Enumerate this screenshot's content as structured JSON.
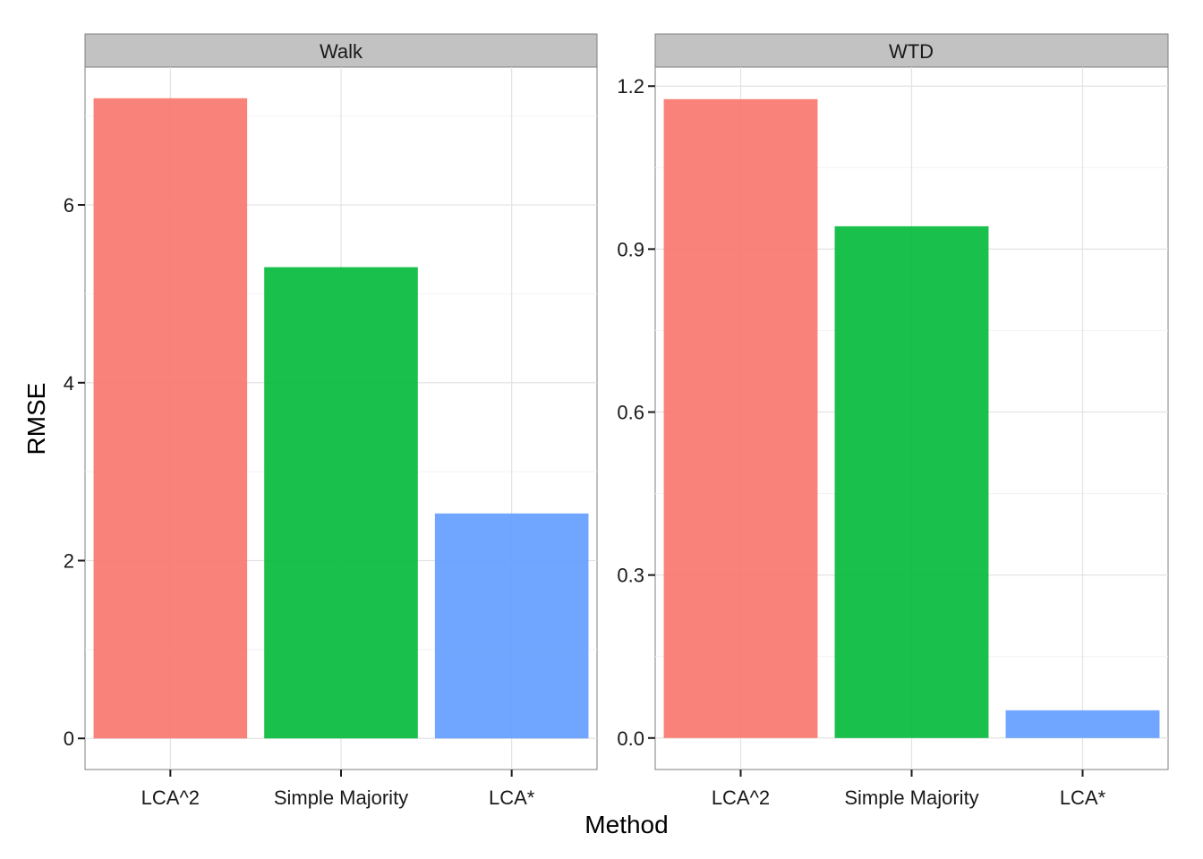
{
  "chart_data": {
    "type": "bar",
    "xlabel": "Method",
    "ylabel": "RMSE",
    "categories": [
      "LCA^2",
      "Simple Majority",
      "LCA*"
    ],
    "colors": [
      "#F8766D",
      "#00BA38",
      "#619CFF"
    ],
    "grid": true,
    "legend": "none",
    "panels": [
      {
        "title": "Walk",
        "values": [
          7.2,
          5.3,
          2.53
        ],
        "ylim": [
          -0.35,
          7.55
        ],
        "yticks": [
          0,
          2,
          4,
          6
        ],
        "ytick_labels": [
          "0",
          "2",
          "4",
          "6"
        ]
      },
      {
        "title": "WTD",
        "values": [
          1.176,
          0.942,
          0.051
        ],
        "ylim": [
          -0.058,
          1.235
        ],
        "yticks": [
          0.0,
          0.3,
          0.6,
          0.9,
          1.2
        ],
        "ytick_labels": [
          "0.0",
          "0.3",
          "0.6",
          "0.9",
          "1.2"
        ]
      }
    ]
  }
}
